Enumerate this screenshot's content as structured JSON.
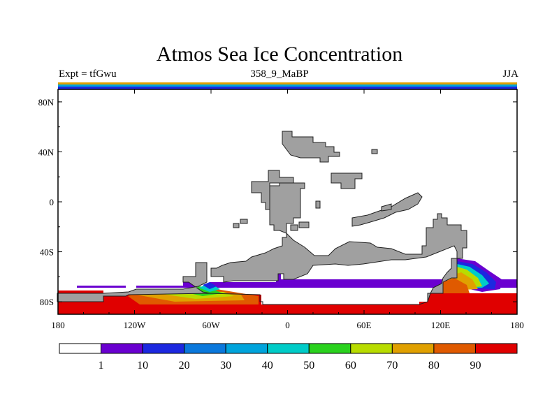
{
  "title": "Atmos Sea Ice Concentration",
  "subtitle_left": "Expt = tfGwu",
  "subtitle_center": "358_9_MaBP",
  "subtitle_right": "JJA",
  "colors": {
    "land": "#a0a0a0",
    "land_outline": "#202020",
    "ice_edge": "#6a00c8"
  },
  "x_axis": {
    "ticks": [
      {
        "value": -180,
        "label": "180"
      },
      {
        "value": -120,
        "label": "120W"
      },
      {
        "value": -60,
        "label": "60W"
      },
      {
        "value": 0,
        "label": "0"
      },
      {
        "value": 60,
        "label": "60E"
      },
      {
        "value": 120,
        "label": "120E"
      },
      {
        "value": 180,
        "label": "180"
      }
    ]
  },
  "y_axis": {
    "ticks": [
      {
        "value": 80,
        "label": "80N"
      },
      {
        "value": 40,
        "label": "40N"
      },
      {
        "value": 0,
        "label": "0"
      },
      {
        "value": -40,
        "label": "40S"
      },
      {
        "value": -80,
        "label": "80S"
      }
    ]
  },
  "colorbar": {
    "colors": [
      "#ffffff",
      "#6a00d0",
      "#1c28e0",
      "#0a78dc",
      "#00a4dc",
      "#00ccc8",
      "#2ad21e",
      "#b8dc00",
      "#e0a000",
      "#e05a00",
      "#e00000"
    ],
    "labels": [
      "1",
      "10",
      "20",
      "30",
      "40",
      "50",
      "60",
      "70",
      "80",
      "90"
    ]
  }
}
